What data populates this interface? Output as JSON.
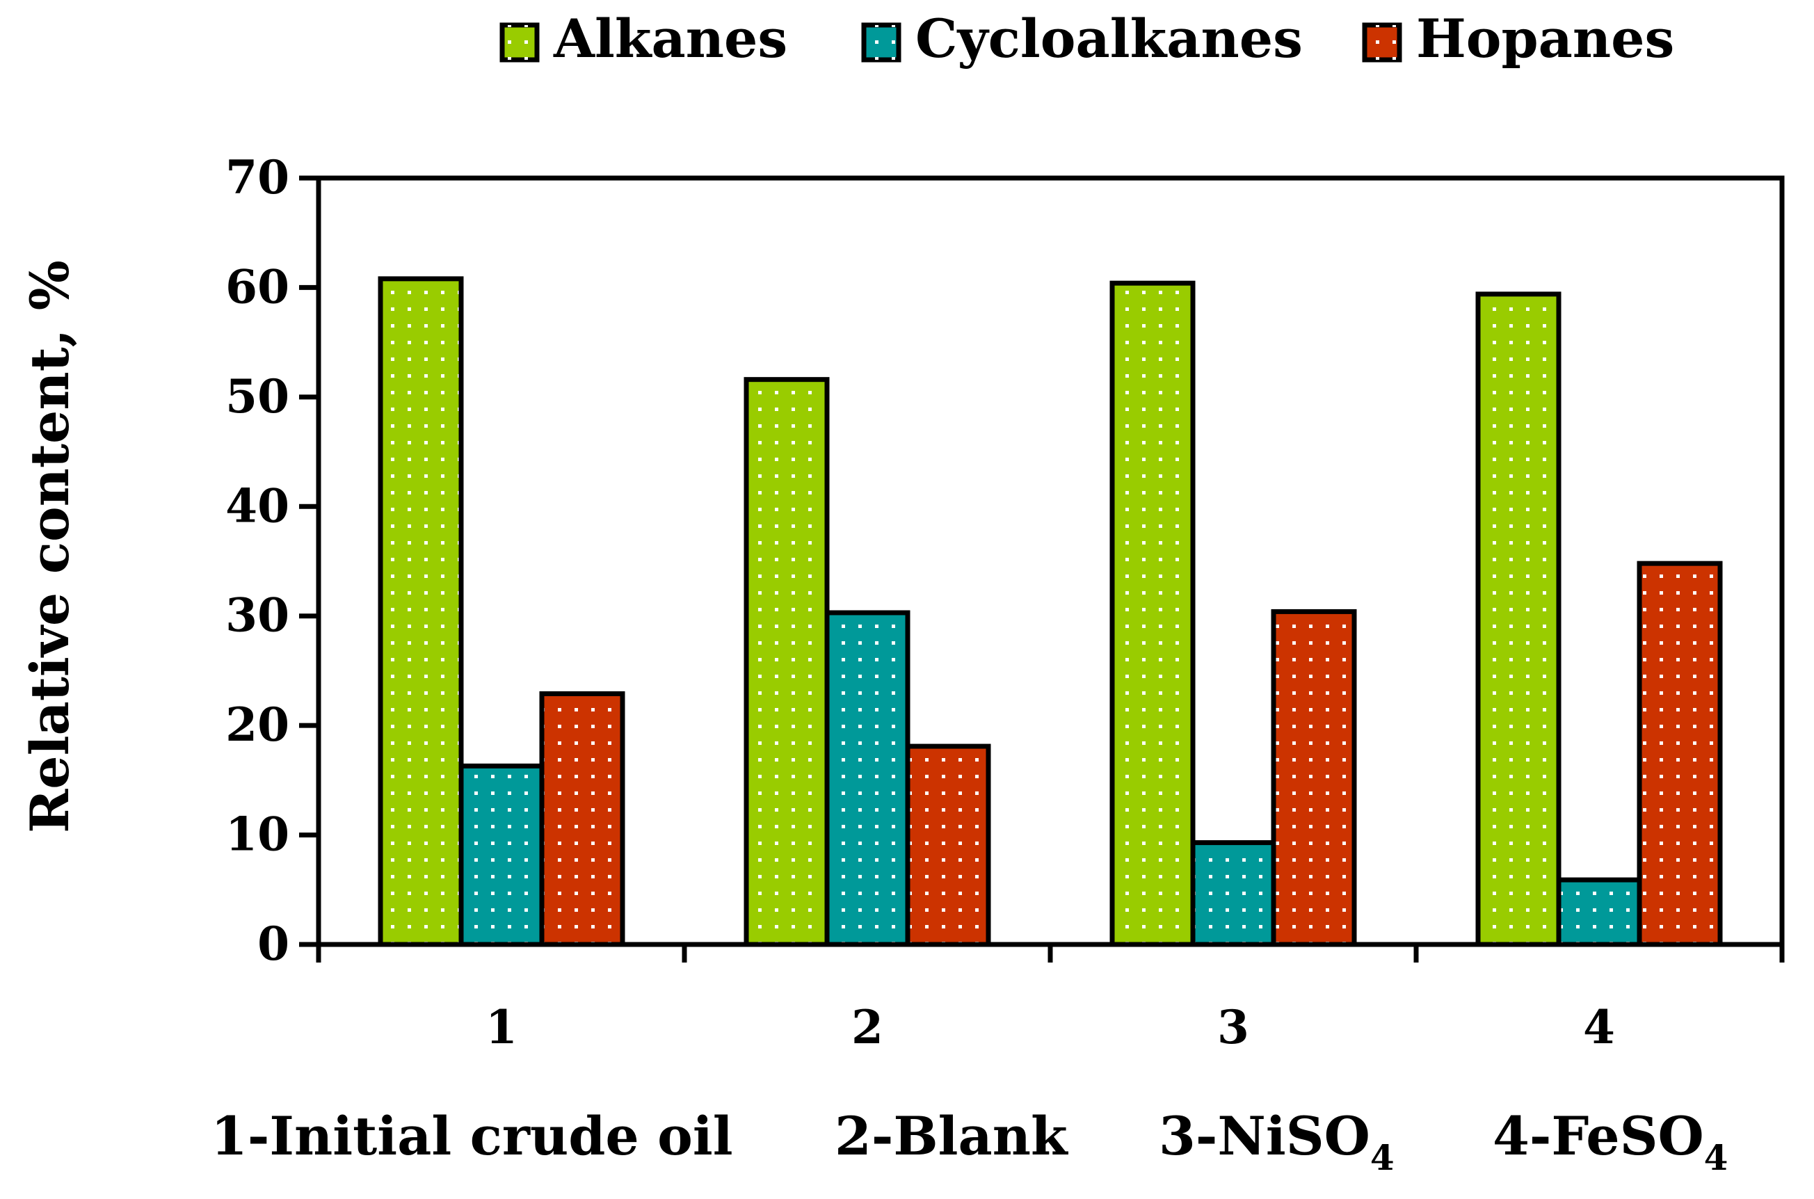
{
  "chart_data": {
    "type": "bar",
    "title": "",
    "xlabel": "",
    "ylabel": "Relative content, %",
    "ylim": [
      0,
      70
    ],
    "yticks": [
      0,
      10,
      20,
      30,
      40,
      50,
      60,
      70
    ],
    "categories": [
      "1",
      "2",
      "3",
      "4"
    ],
    "series": [
      {
        "name": "Alkanes",
        "color": "#99cc00",
        "values": [
          60.8,
          51.6,
          60.4,
          59.4
        ]
      },
      {
        "name": "Cycloalkanes",
        "color": "#009999",
        "values": [
          16.3,
          30.3,
          9.3,
          5.9
        ]
      },
      {
        "name": "Hopanes",
        "color": "#cc3300",
        "values": [
          22.9,
          18.1,
          30.4,
          34.8
        ]
      }
    ],
    "legend_position": "top-center",
    "grid": false,
    "sample_notes": [
      {
        "main": "1-Initial crude oil",
        "sub": ""
      },
      {
        "main": "2-Blank",
        "sub": ""
      },
      {
        "main": "3-NiSO",
        "sub": "4"
      },
      {
        "main": "4-FeSO",
        "sub": "4"
      }
    ]
  }
}
